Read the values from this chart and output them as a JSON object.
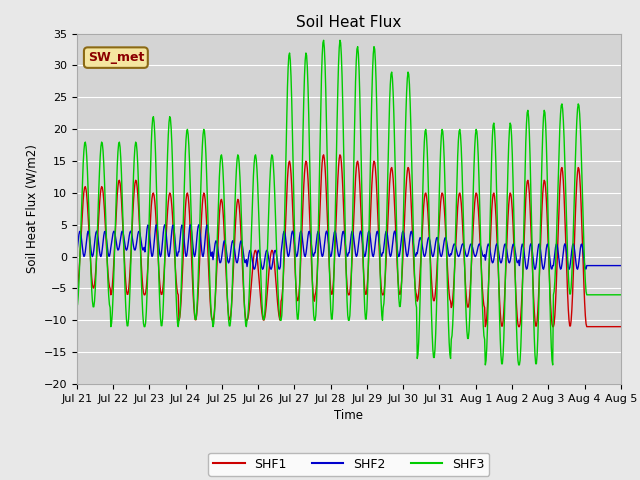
{
  "title": "Soil Heat Flux",
  "ylabel": "Soil Heat Flux (W/m2)",
  "xlabel": "Time",
  "annotation": "SW_met",
  "ylim": [
    -20,
    35
  ],
  "background_color": "#e8e8e8",
  "plot_bg_color": "#d4d4d4",
  "grid_color": "#ffffff",
  "shf1_color": "#cc0000",
  "shf2_color": "#0000cc",
  "shf3_color": "#00cc00",
  "tick_labels": [
    "Jul 21",
    "Jul 22",
    "Jul 23",
    "Jul 24",
    "Jul 25",
    "Jul 26",
    "Jul 27",
    "Jul 28",
    "Jul 29",
    "Jul 30",
    "Jul 31",
    "Aug 1",
    "Aug 2",
    "Aug 3",
    "Aug 4",
    "Aug 5"
  ],
  "legend_labels": [
    "SHF1",
    "SHF2",
    "SHF3"
  ]
}
